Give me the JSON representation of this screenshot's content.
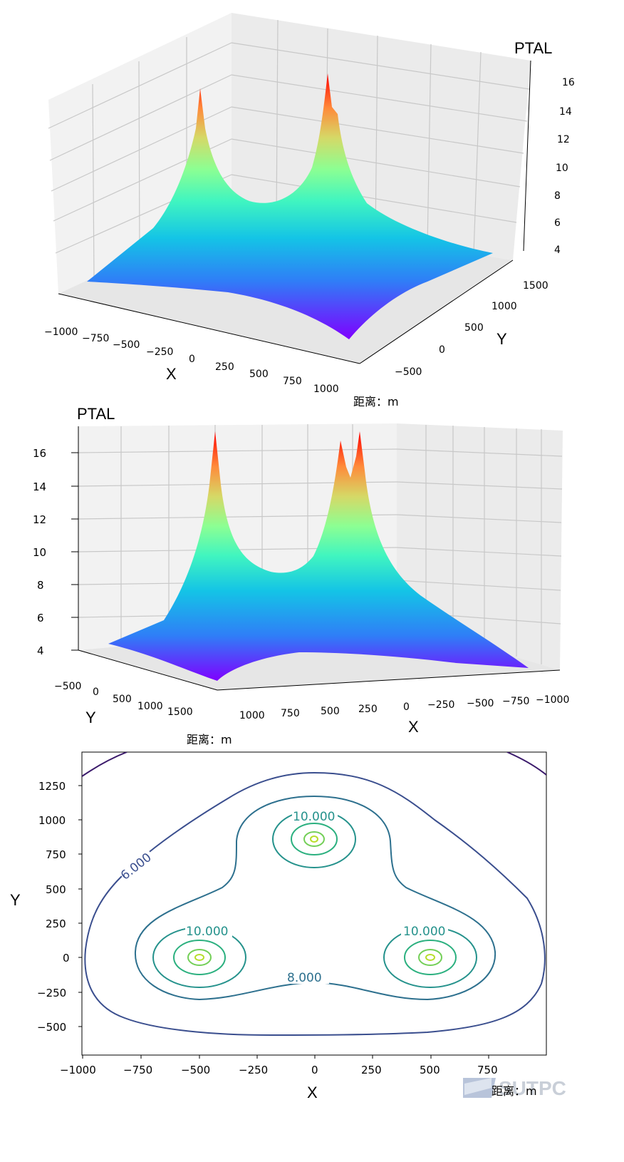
{
  "units_label": "距离：m",
  "watermark": "SUTPC",
  "colors": {
    "rainbow": [
      "#7f00ff",
      "#3f56fa",
      "#00a4f0",
      "#3ffdc2",
      "#80ff98",
      "#c1e56b",
      "#ff9f3b",
      "#ff4a10",
      "#ff0000"
    ],
    "contour_levels_colors": {
      "4": "#3b1a6b",
      "6": "#3a4e8e",
      "8": "#2d708e",
      "10": "#25928c",
      "12": "#2bb07f",
      "14": "#73cf57",
      "16": "#b7de2a"
    }
  },
  "chart_data": [
    {
      "type": "surface",
      "title": "",
      "xlabel": "X",
      "ylabel": "Y",
      "zlabel": "PTAL",
      "x_ticks": [
        "−1000",
        "−750",
        "−500",
        "−250",
        "0",
        "250",
        "500",
        "750",
        "1000"
      ],
      "y_ticks": [
        "−500",
        "0",
        "500",
        "1000",
        "1500"
      ],
      "z_ticks": [
        "4",
        "6",
        "8",
        "10",
        "12",
        "14",
        "16"
      ],
      "xlim": [
        -1000,
        1000
      ],
      "ylim": [
        -600,
        1500
      ],
      "zlim": [
        4,
        16
      ],
      "peaks": [
        {
          "x": -500,
          "y": 0,
          "z": 16
        },
        {
          "x": 500,
          "y": 0,
          "z": 16
        },
        {
          "x": 0,
          "y": 866,
          "z": 16
        }
      ],
      "colormap": "rainbow"
    },
    {
      "type": "surface",
      "title": "",
      "xlabel": "X",
      "ylabel": "Y",
      "zlabel": "PTAL",
      "x_ticks": [
        "1000",
        "750",
        "500",
        "250",
        "0",
        "−250",
        "−500",
        "−750",
        "−1000"
      ],
      "y_ticks": [
        "−500",
        "0",
        "500",
        "1000",
        "1500"
      ],
      "z_ticks": [
        "4",
        "6",
        "8",
        "10",
        "12",
        "14",
        "16"
      ],
      "xlim": [
        -1000,
        1000
      ],
      "ylim": [
        -600,
        1500
      ],
      "zlim": [
        4,
        16
      ],
      "peaks": [
        {
          "x": -500,
          "y": 0,
          "z": 16
        },
        {
          "x": 500,
          "y": 0,
          "z": 16
        },
        {
          "x": 0,
          "y": 866,
          "z": 16
        }
      ],
      "colormap": "rainbow"
    },
    {
      "type": "contour",
      "title": "",
      "xlabel": "X",
      "ylabel": "Y",
      "x_ticks": [
        "−1000",
        "−750",
        "−500",
        "−250",
        "0",
        "250",
        "500",
        "750"
      ],
      "y_ticks": [
        "1250",
        "1000",
        "750",
        "500",
        "250",
        "0",
        "−250",
        "−500"
      ],
      "xlim": [
        -1000,
        1000
      ],
      "ylim": [
        -700,
        1480
      ],
      "levels": [
        4,
        6,
        8,
        10,
        12,
        14,
        16
      ],
      "contour_labels": [
        "6.000",
        "10.000",
        "10.000",
        "10.000",
        "8.000"
      ],
      "centers": [
        {
          "x": -500,
          "y": 0
        },
        {
          "x": 500,
          "y": 0
        },
        {
          "x": 0,
          "y": 866
        }
      ]
    }
  ]
}
